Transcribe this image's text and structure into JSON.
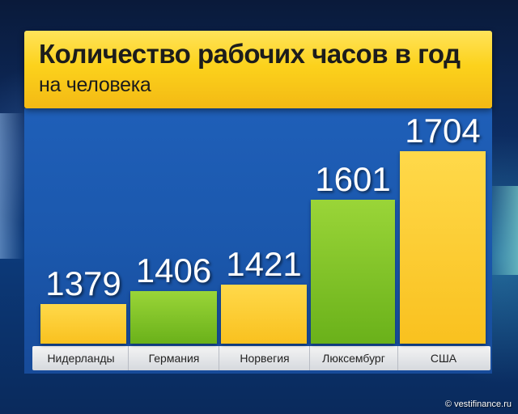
{
  "title": "Количество рабочих часов в год",
  "subtitle": "на человека",
  "watermark": "© vestifinance.ru",
  "colors": {
    "yellow": "#f9c11f",
    "green": "#6ab11a",
    "background": "#1b58ad"
  },
  "chart_data": {
    "type": "bar",
    "title": "Количество рабочих часов в год",
    "subtitle": "на человека",
    "categories": [
      "Нидерланды",
      "Германия",
      "Норвегия",
      "Люксембург",
      "США"
    ],
    "values": [
      1379,
      1406,
      1421,
      1601,
      1704
    ],
    "bar_colors": [
      "yellow",
      "green",
      "yellow",
      "green",
      "yellow"
    ],
    "xlabel": "",
    "ylabel": "",
    "grid": false,
    "legend": "none"
  }
}
